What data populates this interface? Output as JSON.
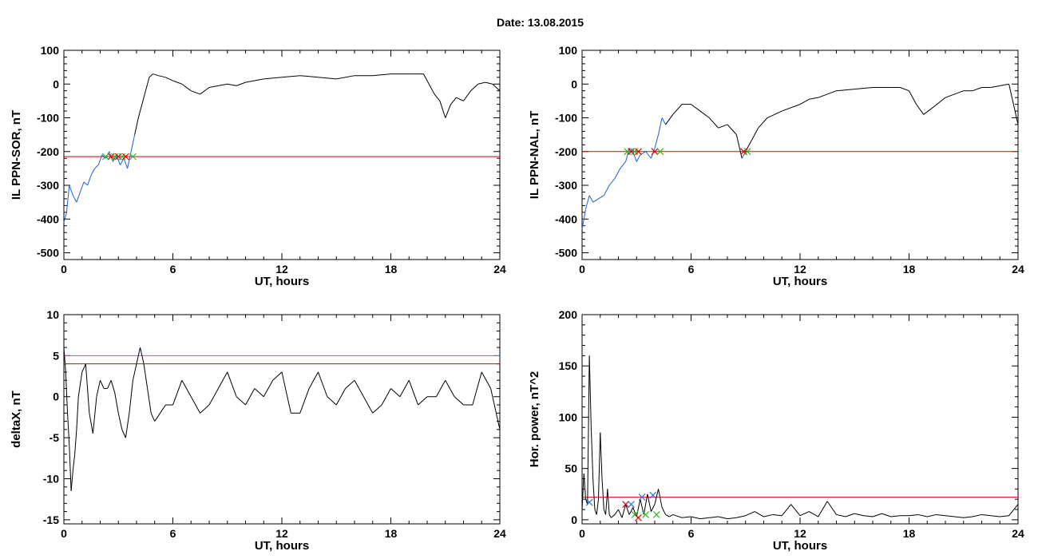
{
  "page_title": "Date:  13.08.2015",
  "colors": {
    "threshold_red": "#e00000",
    "threshold_blue": "#1f9bd6",
    "segment_blue": "#1f5fd6",
    "marker_red": "#e00000",
    "marker_green": "#20c020",
    "marker_blue": "#1f7fd6",
    "line": "#000000"
  },
  "chart_data": [
    {
      "type": "line",
      "ylabel": "IL PPN-SOR, nT",
      "xlabel": "UT, hours",
      "xlim": [
        0,
        24
      ],
      "ylim": [
        -520,
        100
      ],
      "xticks": [
        0,
        6,
        12,
        18,
        24
      ],
      "yticks": [
        -500,
        -400,
        -300,
        -200,
        -100,
        0,
        100
      ],
      "thresholds": [
        {
          "value": -215,
          "color": "red"
        }
      ],
      "series": [
        {
          "x": [
            0,
            0.15,
            0.3,
            0.5,
            0.7,
            0.9,
            1.1,
            1.3,
            1.5,
            1.7,
            1.9,
            2.1,
            2.3,
            2.5,
            2.7,
            2.9,
            3.1,
            3.3,
            3.5,
            3.7,
            3.9,
            4.1,
            4.3,
            4.5,
            4.7,
            4.9,
            5.2,
            5.6,
            6.0,
            6.5,
            7.0,
            7.5,
            8.0,
            8.5,
            9.0,
            9.5,
            10.0,
            11.0,
            12.0,
            13.0,
            14.0,
            15.0,
            16.0,
            17.0,
            18.0,
            19.0,
            19.8,
            20.1,
            20.4,
            20.7,
            21.0,
            21.3,
            21.6,
            22.0,
            22.4,
            22.8,
            23.2,
            23.6,
            24.0
          ],
          "y": [
            -410,
            -380,
            -300,
            -330,
            -350,
            -320,
            -290,
            -300,
            -270,
            -250,
            -240,
            -210,
            -220,
            -200,
            -230,
            -210,
            -240,
            -220,
            -250,
            -200,
            -150,
            -100,
            -60,
            -20,
            20,
            30,
            25,
            20,
            10,
            0,
            -20,
            -30,
            -10,
            -5,
            0,
            -5,
            5,
            15,
            20,
            25,
            20,
            15,
            25,
            25,
            30,
            30,
            30,
            0,
            -30,
            -50,
            -100,
            -60,
            -40,
            -50,
            -20,
            0,
            5,
            0,
            -20
          ],
          "segments": [
            {
              "x_from": 0,
              "x_to": 3.8,
              "color": "blue"
            }
          ]
        }
      ],
      "markers": [
        {
          "x": 2.3,
          "y": -215,
          "kind": "cross-green"
        },
        {
          "x": 2.6,
          "y": -215,
          "kind": "cross-red"
        },
        {
          "x": 2.8,
          "y": -215,
          "kind": "cross-green"
        },
        {
          "x": 3.0,
          "y": -215,
          "kind": "cross-red"
        },
        {
          "x": 3.2,
          "y": -215,
          "kind": "cross-green"
        },
        {
          "x": 3.4,
          "y": -215,
          "kind": "cross-red"
        },
        {
          "x": 3.8,
          "y": -215,
          "kind": "cross-green"
        }
      ]
    },
    {
      "type": "line",
      "ylabel": "IL PPN-NAL, nT",
      "xlabel": "UT, hours",
      "xlim": [
        0,
        24
      ],
      "ylim": [
        -520,
        100
      ],
      "xticks": [
        0,
        6,
        12,
        18,
        24
      ],
      "yticks": [
        -500,
        -400,
        -300,
        -200,
        -100,
        0,
        100
      ],
      "thresholds": [
        {
          "value": -200,
          "color": "red"
        }
      ],
      "series": [
        {
          "x": [
            0,
            0.2,
            0.4,
            0.6,
            0.9,
            1.2,
            1.5,
            1.8,
            2.1,
            2.4,
            2.6,
            2.8,
            3.0,
            3.2,
            3.5,
            3.8,
            4.0,
            4.2,
            4.4,
            4.6,
            5.0,
            5.5,
            6.0,
            6.5,
            7.0,
            7.5,
            8.0,
            8.5,
            8.8,
            9.0,
            9.3,
            9.7,
            10.2,
            11.0,
            12.0,
            12.5,
            13.0,
            14.0,
            15.0,
            16.0,
            17.0,
            17.5,
            18.0,
            18.4,
            18.8,
            19.3,
            20.0,
            21.0,
            21.5,
            22.0,
            22.5,
            23.0,
            23.5,
            24.0
          ],
          "y": [
            -430,
            -370,
            -330,
            -350,
            -340,
            -330,
            -300,
            -280,
            -250,
            -230,
            -190,
            -200,
            -230,
            -210,
            -200,
            -220,
            -190,
            -150,
            -100,
            -120,
            -90,
            -60,
            -60,
            -80,
            -100,
            -130,
            -120,
            -150,
            -220,
            -200,
            -170,
            -130,
            -100,
            -80,
            -60,
            -45,
            -40,
            -20,
            -15,
            -10,
            -10,
            -10,
            -20,
            -60,
            -90,
            -70,
            -40,
            -20,
            -20,
            -10,
            -10,
            -5,
            0,
            -120
          ],
          "segments": [
            {
              "x_from": 0,
              "x_to": 4.5,
              "color": "blue"
            },
            {
              "x_from": 8.7,
              "x_to": 9.1,
              "color": "blue"
            }
          ]
        }
      ],
      "markers": [
        {
          "x": 2.5,
          "y": -200,
          "kind": "cross-green"
        },
        {
          "x": 2.7,
          "y": -200,
          "kind": "cross-red"
        },
        {
          "x": 2.9,
          "y": -200,
          "kind": "cross-green"
        },
        {
          "x": 3.1,
          "y": -200,
          "kind": "cross-red"
        },
        {
          "x": 4.0,
          "y": -200,
          "kind": "cross-red"
        },
        {
          "x": 4.3,
          "y": -200,
          "kind": "cross-green"
        },
        {
          "x": 8.9,
          "y": -200,
          "kind": "cross-red"
        },
        {
          "x": 9.1,
          "y": -200,
          "kind": "cross-green"
        }
      ]
    },
    {
      "type": "line",
      "ylabel": "deltaX, nT",
      "xlabel": "UT, hours",
      "xlim": [
        0,
        24
      ],
      "ylim": [
        -15.5,
        10
      ],
      "xticks": [
        0,
        6,
        12,
        18,
        24
      ],
      "yticks": [
        -15,
        -10,
        -5,
        0,
        5,
        10
      ],
      "thresholds": [
        {
          "value": 5,
          "color": "blue"
        },
        {
          "value": 4,
          "color": "red"
        }
      ],
      "series": [
        {
          "x": [
            0,
            0.1,
            0.2,
            0.3,
            0.4,
            0.5,
            0.6,
            0.7,
            0.8,
            1.0,
            1.2,
            1.4,
            1.6,
            1.8,
            2.0,
            2.2,
            2.4,
            2.6,
            2.8,
            3.0,
            3.2,
            3.4,
            3.6,
            3.8,
            4.0,
            4.2,
            4.4,
            4.6,
            4.8,
            5.0,
            5.3,
            5.6,
            6.0,
            6.5,
            7.0,
            7.5,
            8.0,
            8.5,
            9.0,
            9.5,
            10.0,
            10.5,
            11.0,
            11.5,
            12.0,
            12.5,
            13.0,
            13.5,
            14.0,
            14.5,
            15.0,
            15.5,
            16.0,
            16.5,
            17.0,
            17.5,
            18.0,
            18.5,
            19.0,
            19.5,
            20.0,
            20.5,
            21.0,
            21.5,
            22.0,
            22.5,
            23.0,
            23.5,
            24.0
          ],
          "y": [
            6,
            3,
            -2,
            -6,
            -11.5,
            -9,
            -7,
            -4,
            0,
            3,
            4,
            -2,
            -4.5,
            0,
            2,
            1,
            1,
            2,
            0.5,
            -2,
            -4,
            -5,
            -2,
            2,
            4,
            6,
            4,
            1,
            -2,
            -3,
            -2,
            -1,
            -1,
            2,
            0,
            -2,
            -1,
            1,
            3,
            0,
            -1,
            1,
            0,
            2,
            3,
            -2,
            -2,
            1,
            3,
            0,
            -1,
            1,
            2,
            0,
            -2,
            -1,
            1,
            0,
            2,
            -1,
            0,
            0,
            2,
            0,
            -1,
            -1,
            3,
            1,
            -4
          ]
        }
      ]
    },
    {
      "type": "line",
      "ylabel": "Hor. power, nT^2",
      "xlabel": "UT, hours",
      "xlim": [
        0,
        24
      ],
      "ylim": [
        -4,
        200
      ],
      "xticks": [
        0,
        6,
        12,
        18,
        24
      ],
      "yticks": [
        0,
        50,
        100,
        150,
        200
      ],
      "thresholds": [
        {
          "value": 22,
          "color": "red"
        }
      ],
      "series": [
        {
          "x": [
            0,
            0.1,
            0.2,
            0.3,
            0.4,
            0.5,
            0.6,
            0.7,
            0.8,
            0.9,
            1.0,
            1.1,
            1.2,
            1.3,
            1.4,
            1.5,
            1.6,
            1.8,
            2.0,
            2.2,
            2.4,
            2.6,
            2.8,
            3.0,
            3.2,
            3.4,
            3.6,
            3.8,
            4.0,
            4.2,
            4.4,
            4.6,
            4.8,
            5.0,
            5.5,
            6.0,
            6.5,
            7.0,
            7.5,
            8.0,
            8.5,
            9.0,
            9.5,
            10.0,
            10.5,
            11.0,
            11.5,
            12.0,
            12.5,
            13.0,
            13.5,
            14.0,
            14.5,
            15.0,
            15.5,
            16.0,
            16.5,
            17.0,
            17.5,
            18.0,
            18.5,
            19.0,
            19.5,
            20.0,
            20.5,
            21.0,
            21.5,
            22.0,
            22.5,
            23.0,
            23.5,
            24.0
          ],
          "y": [
            10,
            45,
            20,
            15,
            160,
            90,
            40,
            10,
            5,
            20,
            85,
            40,
            10,
            5,
            30,
            5,
            2,
            5,
            10,
            2,
            15,
            5,
            12,
            3,
            20,
            5,
            25,
            8,
            15,
            30,
            12,
            5,
            3,
            5,
            2,
            3,
            1,
            2,
            3,
            1,
            2,
            4,
            8,
            3,
            5,
            4,
            15,
            4,
            8,
            3,
            18,
            5,
            3,
            6,
            4,
            3,
            6,
            3,
            4,
            4,
            5,
            3,
            5,
            4,
            3,
            2,
            3,
            5,
            4,
            3,
            4,
            15
          ]
        }
      ],
      "markers": [
        {
          "x": 0.4,
          "y": 17,
          "kind": "cross-blue"
        },
        {
          "x": 2.4,
          "y": 15,
          "kind": "cross-red"
        },
        {
          "x": 2.7,
          "y": 15,
          "kind": "cross-blue"
        },
        {
          "x": 2.9,
          "y": 5,
          "kind": "cross-green"
        },
        {
          "x": 3.1,
          "y": 2,
          "kind": "cross-red"
        },
        {
          "x": 3.3,
          "y": 22,
          "kind": "cross-blue"
        },
        {
          "x": 3.5,
          "y": 5,
          "kind": "cross-green"
        },
        {
          "x": 3.9,
          "y": 24,
          "kind": "cross-blue"
        },
        {
          "x": 4.1,
          "y": 5,
          "kind": "cross-green"
        }
      ]
    }
  ]
}
